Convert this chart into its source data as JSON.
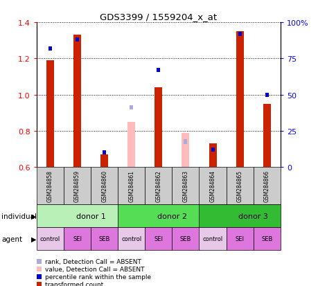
{
  "title": "GDS3399 / 1559204_x_at",
  "samples": [
    "GSM284858",
    "GSM284859",
    "GSM284860",
    "GSM284861",
    "GSM284862",
    "GSM284863",
    "GSM284864",
    "GSM284865",
    "GSM284866"
  ],
  "transformed_count": [
    1.19,
    1.33,
    0.67,
    null,
    1.04,
    null,
    0.73,
    1.35,
    0.95
  ],
  "percentile_rank": [
    82,
    88,
    10,
    null,
    67,
    null,
    12,
    92,
    50
  ],
  "absent_value": [
    null,
    null,
    null,
    0.85,
    null,
    0.79,
    null,
    null,
    null
  ],
  "absent_rank": [
    null,
    null,
    null,
    0.93,
    null,
    0.74,
    null,
    null,
    null
  ],
  "ylim": [
    0.6,
    1.4
  ],
  "y2lim": [
    0,
    100
  ],
  "yticks": [
    0.6,
    0.8,
    1.0,
    1.2,
    1.4
  ],
  "y2ticks": [
    0,
    25,
    50,
    75,
    100
  ],
  "y2ticklabels": [
    "0",
    "25",
    "50",
    "75",
    "100%"
  ],
  "donors": [
    {
      "label": "donor 1",
      "start": 0,
      "end": 3,
      "color": "#b8f0b8"
    },
    {
      "label": "donor 2",
      "start": 3,
      "end": 6,
      "color": "#55dd55"
    },
    {
      "label": "donor 3",
      "start": 6,
      "end": 9,
      "color": "#33bb33"
    }
  ],
  "agents": [
    "control",
    "SEI",
    "SEB",
    "control",
    "SEI",
    "SEB",
    "control",
    "SEI",
    "SEB"
  ],
  "agent_colors": [
    "#e8c8e8",
    "#dd77dd",
    "#dd77dd",
    "#e8c8e8",
    "#dd77dd",
    "#dd77dd",
    "#e8c8e8",
    "#dd77dd",
    "#dd77dd"
  ],
  "bar_color_red": "#cc2200",
  "bar_color_absent": "#ffbbbb",
  "dot_color_blue": "#0000cc",
  "dot_color_absent": "#aaaadd",
  "sample_bg_color": "#cccccc",
  "legend_items": [
    {
      "color": "#cc2200",
      "label": "transformed count"
    },
    {
      "color": "#0000cc",
      "label": "percentile rank within the sample"
    },
    {
      "color": "#ffbbbb",
      "label": "value, Detection Call = ABSENT"
    },
    {
      "color": "#aaaadd",
      "label": "rank, Detection Call = ABSENT"
    }
  ]
}
